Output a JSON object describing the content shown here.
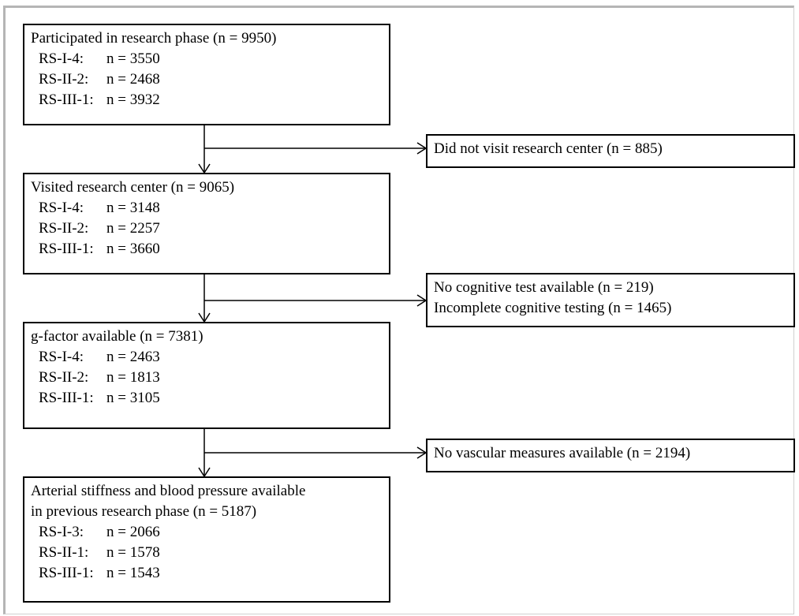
{
  "boxes": {
    "participated": {
      "title": "Participated in research phase (n = 9950)",
      "rows": [
        {
          "label": "RS-I-4:",
          "value": "n = 3550"
        },
        {
          "label": "RS-II-2:",
          "value": "n = 2468"
        },
        {
          "label": "RS-III-1:",
          "value": "n = 3932"
        }
      ]
    },
    "visited": {
      "title": "Visited research center (n = 9065)",
      "rows": [
        {
          "label": "RS-I-4:",
          "value": "n = 3148"
        },
        {
          "label": "RS-II-2:",
          "value": "n = 2257"
        },
        {
          "label": "RS-III-1:",
          "value": "n = 3660"
        }
      ]
    },
    "gfactor": {
      "title": "g-factor available (n = 7381)",
      "rows": [
        {
          "label": "RS-I-4:",
          "value": "n = 2463"
        },
        {
          "label": "RS-II-2:",
          "value": "n = 1813"
        },
        {
          "label": "RS-III-1:",
          "value": "n = 3105"
        }
      ]
    },
    "arterial": {
      "title_line1": "Arterial stiffness and blood pressure available",
      "title_line2": "in previous research phase (n = 5187)",
      "rows": [
        {
          "label": "RS-I-3:",
          "value": "n = 2066"
        },
        {
          "label": "RS-II-1:",
          "value": "n = 1578"
        },
        {
          "label": "RS-III-1:",
          "value": "n = 1543"
        }
      ]
    }
  },
  "exclusions": {
    "no_visit": {
      "text": "Did not visit research center (n = 885)"
    },
    "cognitive": {
      "line1": "No cognitive test available (n = 219)",
      "line2": "Incomplete cognitive testing (n = 1465)"
    },
    "vascular": {
      "text": "No vascular measures available (n = 2194)"
    }
  }
}
